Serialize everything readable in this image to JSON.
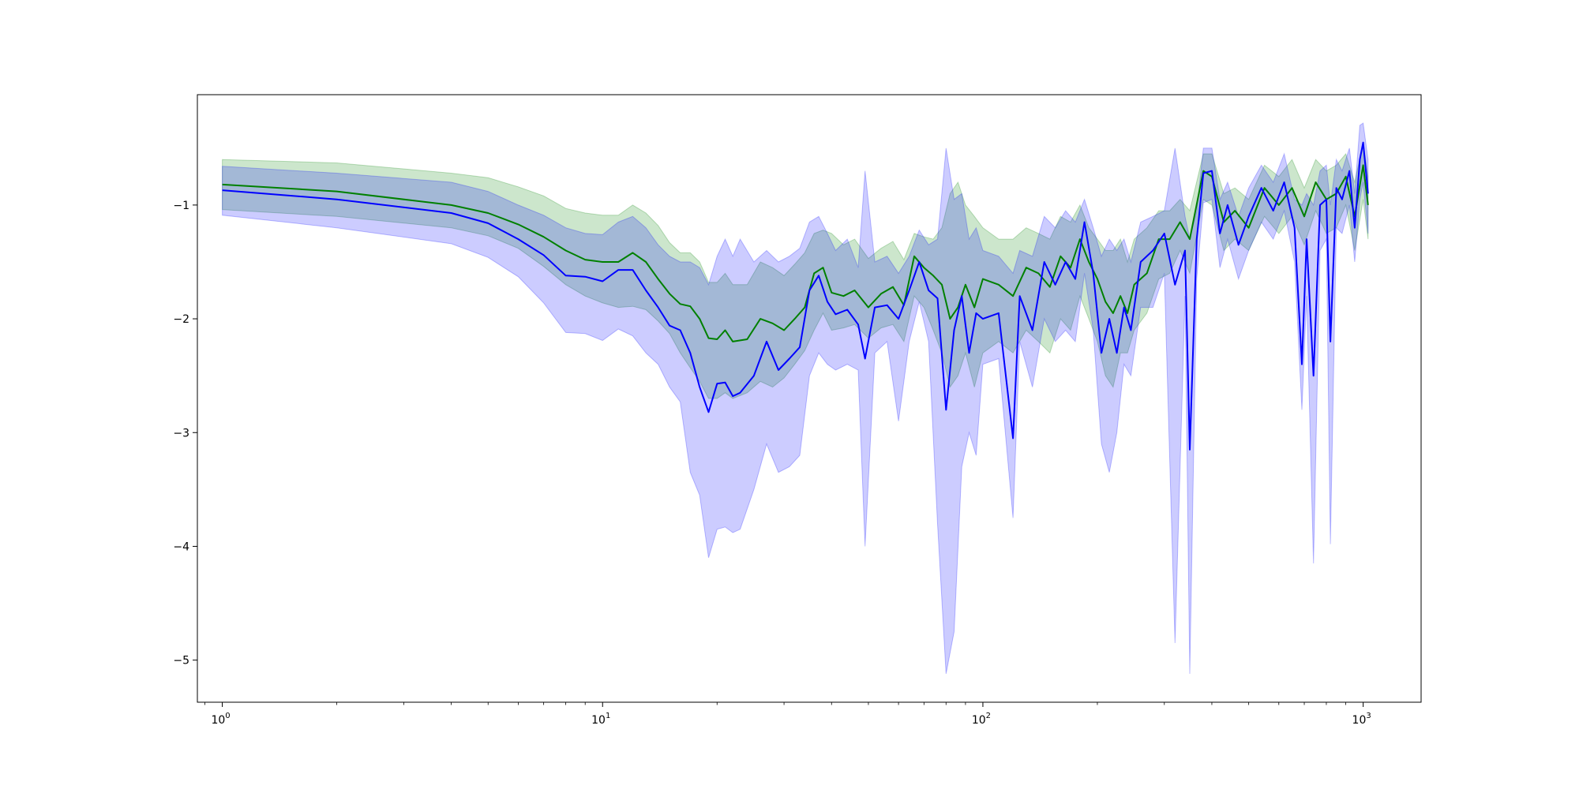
{
  "chart_data": {
    "type": "line",
    "title": "",
    "xlabel": "",
    "ylabel": "",
    "x_scale": "log",
    "xlim": [
      0.86,
      1420
    ],
    "ylim": [
      -5.37,
      -0.03
    ],
    "grid": false,
    "x_ticks": [
      {
        "value": 1,
        "base": "10",
        "exp": "0"
      },
      {
        "value": 10,
        "base": "10",
        "exp": "1"
      },
      {
        "value": 100,
        "base": "10",
        "exp": "2"
      },
      {
        "value": 1000,
        "base": "10",
        "exp": "3"
      }
    ],
    "y_ticks": [
      {
        "value": -1,
        "label": "−1"
      },
      {
        "value": -2,
        "label": "−2"
      },
      {
        "value": -3,
        "label": "−3"
      },
      {
        "value": -4,
        "label": "−4"
      },
      {
        "value": -5,
        "label": "−5"
      }
    ],
    "series": [
      {
        "color": "#008000",
        "band_color": "#008000",
        "points": [
          [
            1,
            -0.82,
            -1.04,
            -0.6
          ],
          [
            2,
            -0.88,
            -1.1,
            -0.63
          ],
          [
            4,
            -1.0,
            -1.2,
            -0.72
          ],
          [
            5,
            -1.07,
            -1.27,
            -0.76
          ],
          [
            6,
            -1.17,
            -1.38,
            -0.84
          ],
          [
            7,
            -1.28,
            -1.54,
            -0.92
          ],
          [
            8,
            -1.4,
            -1.7,
            -1.03
          ],
          [
            9,
            -1.48,
            -1.8,
            -1.07
          ],
          [
            10,
            -1.5,
            -1.86,
            -1.09
          ],
          [
            11,
            -1.5,
            -1.9,
            -1.09
          ],
          [
            12,
            -1.42,
            -1.89,
            -1.0
          ],
          [
            13,
            -1.5,
            -1.92,
            -1.07
          ],
          [
            14,
            -1.65,
            -2.02,
            -1.18
          ],
          [
            15,
            -1.78,
            -2.13,
            -1.33
          ],
          [
            16,
            -1.87,
            -2.3,
            -1.42
          ],
          [
            17,
            -1.89,
            -2.43,
            -1.42
          ],
          [
            18,
            -2.0,
            -2.55,
            -1.5
          ],
          [
            19,
            -2.17,
            -2.7,
            -1.68
          ],
          [
            20,
            -2.18,
            -2.7,
            -1.68
          ],
          [
            21,
            -2.1,
            -2.65,
            -1.6
          ],
          [
            22,
            -2.2,
            -2.7,
            -1.7
          ],
          [
            24,
            -2.18,
            -2.65,
            -1.7
          ],
          [
            26,
            -2.0,
            -2.55,
            -1.5
          ],
          [
            28,
            -2.04,
            -2.6,
            -1.55
          ],
          [
            30,
            -2.1,
            -2.52,
            -1.62
          ],
          [
            32,
            -2.0,
            -2.4,
            -1.52
          ],
          [
            34,
            -1.9,
            -2.28,
            -1.42
          ],
          [
            36,
            -1.6,
            -2.1,
            -1.25
          ],
          [
            38,
            -1.55,
            -1.95,
            -1.22
          ],
          [
            40,
            -1.77,
            -2.1,
            -1.25
          ],
          [
            43,
            -1.8,
            -2.08,
            -1.35
          ],
          [
            46,
            -1.75,
            -2.05,
            -1.3
          ],
          [
            50,
            -1.9,
            -2.17,
            -1.47
          ],
          [
            54,
            -1.78,
            -2.08,
            -1.38
          ],
          [
            58,
            -1.72,
            -2.05,
            -1.32
          ],
          [
            62,
            -1.88,
            -2.2,
            -1.48
          ],
          [
            66,
            -1.45,
            -1.8,
            -1.25
          ],
          [
            70,
            -1.55,
            -1.9,
            -1.28
          ],
          [
            74,
            -1.62,
            -2.1,
            -1.3
          ],
          [
            78,
            -1.7,
            -2.3,
            -1.2
          ],
          [
            82,
            -2.0,
            -2.6,
            -0.9
          ],
          [
            86,
            -1.9,
            -2.5,
            -0.8
          ],
          [
            90,
            -1.7,
            -2.3,
            -1.0
          ],
          [
            95,
            -1.9,
            -2.6,
            -1.1
          ],
          [
            100,
            -1.65,
            -2.3,
            -1.2
          ],
          [
            110,
            -1.7,
            -2.2,
            -1.3
          ],
          [
            120,
            -1.8,
            -2.3,
            -1.3
          ],
          [
            130,
            -1.55,
            -2.1,
            -1.2
          ],
          [
            140,
            -1.6,
            -2.2,
            -1.25
          ],
          [
            150,
            -1.72,
            -2.3,
            -1.3
          ],
          [
            160,
            -1.45,
            -2.0,
            -1.1
          ],
          [
            170,
            -1.55,
            -2.1,
            -1.15
          ],
          [
            180,
            -1.3,
            -1.8,
            -1.0
          ],
          [
            190,
            -1.5,
            -2.0,
            -1.2
          ],
          [
            200,
            -1.65,
            -2.2,
            -1.3
          ],
          [
            210,
            -1.85,
            -2.5,
            -1.4
          ],
          [
            220,
            -1.95,
            -2.6,
            -1.4
          ],
          [
            230,
            -1.8,
            -2.3,
            -1.3
          ],
          [
            240,
            -1.95,
            -2.3,
            -1.5
          ],
          [
            250,
            -1.7,
            -2.1,
            -1.3
          ],
          [
            270,
            -1.6,
            -1.95,
            -1.2
          ],
          [
            290,
            -1.3,
            -1.65,
            -1.05
          ],
          [
            310,
            -1.3,
            -1.6,
            -1.05
          ],
          [
            330,
            -1.15,
            -1.4,
            -0.95
          ],
          [
            350,
            -1.3,
            -1.6,
            -1.05
          ],
          [
            380,
            -0.7,
            -0.95,
            -0.55
          ],
          [
            400,
            -0.75,
            -1.0,
            -0.55
          ],
          [
            430,
            -1.15,
            -1.4,
            -0.9
          ],
          [
            460,
            -1.05,
            -1.3,
            -0.85
          ],
          [
            500,
            -1.2,
            -1.4,
            -0.95
          ],
          [
            550,
            -0.85,
            -1.1,
            -0.65
          ],
          [
            600,
            -1.0,
            -1.25,
            -0.75
          ],
          [
            650,
            -0.85,
            -1.1,
            -0.6
          ],
          [
            700,
            -1.1,
            -1.35,
            -0.85
          ],
          [
            750,
            -0.8,
            -1.05,
            -0.6
          ],
          [
            800,
            -0.95,
            -1.25,
            -0.7
          ],
          [
            850,
            -0.9,
            -1.2,
            -0.65
          ],
          [
            900,
            -0.75,
            -1.0,
            -0.55
          ],
          [
            950,
            -1.1,
            -1.4,
            -0.8
          ],
          [
            1000,
            -0.65,
            -0.95,
            -0.45
          ],
          [
            1030,
            -1.0,
            -1.3,
            -0.75
          ]
        ]
      },
      {
        "color": "#0000ff",
        "band_color": "#0000ff",
        "points": [
          [
            1,
            -0.87,
            -1.09,
            -0.66
          ],
          [
            2,
            -0.95,
            -1.2,
            -0.72
          ],
          [
            4,
            -1.07,
            -1.34,
            -0.8
          ],
          [
            5,
            -1.16,
            -1.46,
            -0.88
          ],
          [
            6,
            -1.3,
            -1.63,
            -1.0
          ],
          [
            7,
            -1.44,
            -1.86,
            -1.09
          ],
          [
            8,
            -1.62,
            -2.12,
            -1.2
          ],
          [
            9,
            -1.63,
            -2.13,
            -1.25
          ],
          [
            10,
            -1.67,
            -2.19,
            -1.26
          ],
          [
            11,
            -1.57,
            -2.09,
            -1.15
          ],
          [
            12,
            -1.57,
            -2.15,
            -1.1
          ],
          [
            13,
            -1.75,
            -2.3,
            -1.2
          ],
          [
            14,
            -1.9,
            -2.4,
            -1.35
          ],
          [
            15,
            -2.06,
            -2.6,
            -1.45
          ],
          [
            16,
            -2.1,
            -2.73,
            -1.5
          ],
          [
            17,
            -2.3,
            -3.35,
            -1.5
          ],
          [
            18,
            -2.6,
            -3.55,
            -1.55
          ],
          [
            19,
            -2.82,
            -4.1,
            -1.7
          ],
          [
            20,
            -2.57,
            -3.85,
            -1.45
          ],
          [
            21,
            -2.56,
            -3.83,
            -1.3
          ],
          [
            22,
            -2.68,
            -3.88,
            -1.45
          ],
          [
            23,
            -2.65,
            -3.85,
            -1.3
          ],
          [
            25,
            -2.5,
            -3.5,
            -1.5
          ],
          [
            27,
            -2.2,
            -3.1,
            -1.4
          ],
          [
            29,
            -2.45,
            -3.35,
            -1.5
          ],
          [
            31,
            -2.35,
            -3.3,
            -1.45
          ],
          [
            33,
            -2.25,
            -3.2,
            -1.38
          ],
          [
            35,
            -1.75,
            -2.5,
            -1.15
          ],
          [
            37,
            -1.62,
            -2.3,
            -1.1
          ],
          [
            39,
            -1.85,
            -2.4,
            -1.25
          ],
          [
            41,
            -1.96,
            -2.45,
            -1.4
          ],
          [
            44,
            -1.92,
            -2.4,
            -1.3
          ],
          [
            47,
            -2.05,
            -2.45,
            -1.55
          ],
          [
            49,
            -2.35,
            -4.0,
            -0.7
          ],
          [
            52,
            -1.9,
            -2.3,
            -1.5
          ],
          [
            56,
            -1.88,
            -2.2,
            -1.45
          ],
          [
            60,
            -2.0,
            -2.9,
            -1.6
          ],
          [
            64,
            -1.75,
            -2.2,
            -1.45
          ],
          [
            68,
            -1.5,
            -1.85,
            -1.22
          ],
          [
            72,
            -1.75,
            -2.2,
            -1.35
          ],
          [
            76,
            -1.82,
            -3.8,
            -1.3
          ],
          [
            80,
            -2.8,
            -5.12,
            -0.5
          ],
          [
            84,
            -2.1,
            -4.75,
            -0.95
          ],
          [
            88,
            -1.8,
            -3.3,
            -0.9
          ],
          [
            92,
            -2.3,
            -3.0,
            -1.3
          ],
          [
            96,
            -1.95,
            -3.2,
            -1.2
          ],
          [
            100,
            -2.0,
            -2.4,
            -1.4
          ],
          [
            110,
            -1.95,
            -2.35,
            -1.45
          ],
          [
            120,
            -3.05,
            -3.75,
            -1.6
          ],
          [
            125,
            -1.8,
            -2.2,
            -1.4
          ],
          [
            135,
            -2.1,
            -2.6,
            -1.45
          ],
          [
            145,
            -1.5,
            -2.0,
            -1.1
          ],
          [
            155,
            -1.7,
            -2.2,
            -1.2
          ],
          [
            165,
            -1.5,
            -2.1,
            -1.05
          ],
          [
            175,
            -1.65,
            -2.2,
            -1.15
          ],
          [
            185,
            -1.15,
            -1.6,
            -0.95
          ],
          [
            195,
            -1.6,
            -2.1,
            -1.2
          ],
          [
            205,
            -2.3,
            -3.1,
            -1.45
          ],
          [
            215,
            -2.0,
            -3.35,
            -1.3
          ],
          [
            225,
            -2.3,
            -3.0,
            -1.4
          ],
          [
            235,
            -1.9,
            -2.4,
            -1.3
          ],
          [
            245,
            -2.1,
            -2.5,
            -1.5
          ],
          [
            260,
            -1.5,
            -1.9,
            -1.15
          ],
          [
            280,
            -1.4,
            -1.9,
            -1.1
          ],
          [
            300,
            -1.25,
            -1.6,
            -1.05
          ],
          [
            320,
            -1.7,
            -4.85,
            -0.5
          ],
          [
            340,
            -1.4,
            -1.8,
            -1.1
          ],
          [
            350,
            -3.15,
            -5.12,
            -1.3
          ],
          [
            365,
            -1.3,
            -1.65,
            -1.05
          ],
          [
            380,
            -0.72,
            -0.98,
            -0.5
          ],
          [
            400,
            -0.7,
            -0.95,
            -0.5
          ],
          [
            420,
            -1.25,
            -1.55,
            -0.95
          ],
          [
            440,
            -1.0,
            -1.3,
            -0.8
          ],
          [
            470,
            -1.35,
            -1.65,
            -1.1
          ],
          [
            500,
            -1.1,
            -1.4,
            -0.85
          ],
          [
            540,
            -0.85,
            -1.15,
            -0.65
          ],
          [
            580,
            -1.05,
            -1.3,
            -0.8
          ],
          [
            620,
            -0.8,
            -1.05,
            -0.55
          ],
          [
            660,
            -1.2,
            -1.5,
            -0.95
          ],
          [
            690,
            -2.4,
            -2.8,
            -1.0
          ],
          [
            710,
            -1.3,
            -1.8,
            -0.9
          ],
          [
            740,
            -2.5,
            -4.15,
            -1.0
          ],
          [
            770,
            -1.0,
            -1.4,
            -0.7
          ],
          [
            800,
            -0.95,
            -1.3,
            -0.65
          ],
          [
            820,
            -2.2,
            -3.98,
            -1.0
          ],
          [
            850,
            -0.85,
            -1.2,
            -0.6
          ],
          [
            880,
            -0.95,
            -1.25,
            -0.7
          ],
          [
            920,
            -0.7,
            -1.0,
            -0.5
          ],
          [
            950,
            -1.2,
            -1.5,
            -0.9
          ],
          [
            980,
            -0.6,
            -0.95,
            -0.3
          ],
          [
            1000,
            -0.45,
            -0.8,
            -0.28
          ],
          [
            1030,
            -0.9,
            -1.25,
            -0.6
          ]
        ]
      }
    ]
  }
}
